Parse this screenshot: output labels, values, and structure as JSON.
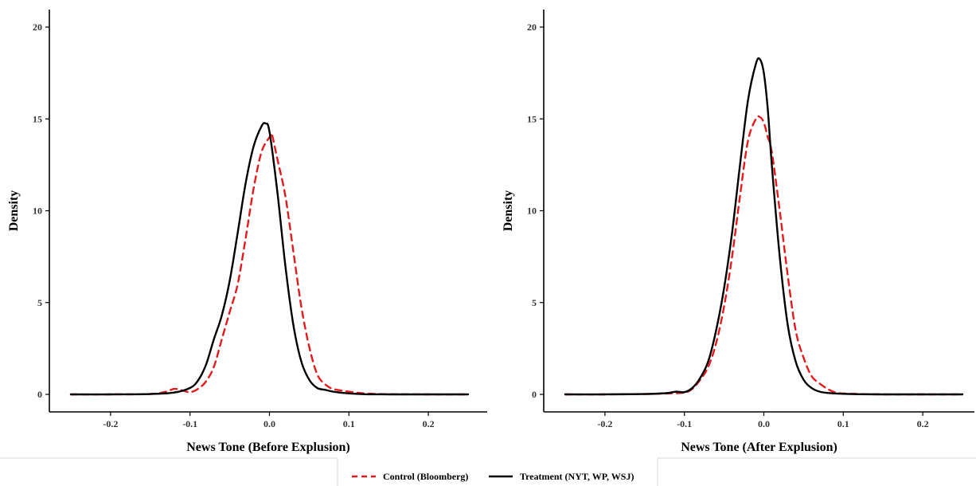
{
  "colors": {
    "control": "#e41a1c",
    "treatment": "#000000"
  },
  "legend": {
    "items": [
      {
        "label": "Control (Bloomberg)",
        "color": "#e41a1c",
        "dash": "dashed"
      },
      {
        "label": "Treatment (NYT, WP, WSJ)",
        "color": "#000000",
        "dash": "solid"
      }
    ]
  },
  "chart_data": [
    {
      "type": "line",
      "title": "",
      "xlabel": "News Tone (Before Explusion)",
      "ylabel": "Density",
      "xlim": [
        -0.25,
        0.25
      ],
      "ylim": [
        0,
        20
      ],
      "xticks": [
        -0.2,
        -0.1,
        0.0,
        0.1,
        0.2
      ],
      "xtick_labels": [
        "-0.2",
        "-0.1",
        "0.0",
        "0.1",
        "0.2"
      ],
      "yticks": [
        0,
        5,
        10,
        15,
        20
      ],
      "ytick_labels": [
        "0",
        "5",
        "10",
        "15",
        "20"
      ],
      "grid": false,
      "series": [
        {
          "name": "Control (Bloomberg)",
          "x": [
            -0.25,
            -0.2,
            -0.15,
            -0.13,
            -0.12,
            -0.11,
            -0.1,
            -0.09,
            -0.08,
            -0.07,
            -0.06,
            -0.05,
            -0.04,
            -0.03,
            -0.02,
            -0.01,
            0.0,
            0.003,
            0.01,
            0.02,
            0.03,
            0.04,
            0.05,
            0.06,
            0.07,
            0.08,
            0.1,
            0.12,
            0.15,
            0.2,
            0.25
          ],
          "y": [
            0,
            0,
            0.02,
            0.15,
            0.3,
            0.22,
            0.12,
            0.3,
            0.7,
            1.5,
            3.0,
            4.5,
            6.0,
            8.5,
            11.2,
            13.2,
            14.0,
            14.15,
            12.8,
            10.8,
            7.8,
            4.8,
            2.6,
            1.1,
            0.55,
            0.3,
            0.15,
            0.05,
            0.01,
            0,
            0
          ]
        },
        {
          "name": "Treatment (NYT, WP, WSJ)",
          "x": [
            -0.25,
            -0.2,
            -0.15,
            -0.12,
            -0.1,
            -0.09,
            -0.08,
            -0.07,
            -0.06,
            -0.05,
            -0.04,
            -0.03,
            -0.02,
            -0.01,
            -0.005,
            0.0,
            0.01,
            0.02,
            0.03,
            0.04,
            0.05,
            0.06,
            0.07,
            0.08,
            0.1,
            0.12,
            0.15,
            0.2,
            0.25
          ],
          "y": [
            0,
            0,
            0.02,
            0.1,
            0.35,
            0.75,
            1.6,
            3.0,
            4.3,
            6.2,
            8.8,
            11.5,
            13.5,
            14.6,
            14.75,
            14.3,
            11.0,
            7.0,
            3.8,
            1.8,
            0.8,
            0.35,
            0.25,
            0.15,
            0.05,
            0.01,
            0,
            0,
            0
          ]
        }
      ]
    },
    {
      "type": "line",
      "title": "",
      "xlabel": "News Tone (After Explusion)",
      "ylabel": "Density",
      "xlim": [
        -0.25,
        0.25
      ],
      "ylim": [
        0,
        20
      ],
      "xticks": [
        -0.2,
        -0.1,
        0.0,
        0.1,
        0.2
      ],
      "xtick_labels": [
        "-0.2",
        "-0.1",
        "0.0",
        "0.1",
        "0.2"
      ],
      "yticks": [
        0,
        5,
        10,
        15,
        20
      ],
      "ytick_labels": [
        "0",
        "5",
        "10",
        "15",
        "20"
      ],
      "grid": false,
      "series": [
        {
          "name": "Control (Bloomberg)",
          "x": [
            -0.25,
            -0.2,
            -0.15,
            -0.12,
            -0.1,
            -0.09,
            -0.08,
            -0.07,
            -0.06,
            -0.05,
            -0.04,
            -0.03,
            -0.02,
            -0.01,
            -0.005,
            0.0,
            0.005,
            0.01,
            0.02,
            0.03,
            0.04,
            0.05,
            0.06,
            0.07,
            0.08,
            0.09,
            0.1,
            0.12,
            0.15,
            0.2,
            0.25
          ],
          "y": [
            0,
            0,
            0.02,
            0.05,
            0.1,
            0.3,
            0.8,
            1.5,
            2.8,
            4.8,
            7.5,
            10.8,
            13.8,
            15.0,
            15.1,
            14.8,
            14.0,
            13.2,
            10.0,
            6.5,
            3.5,
            2.0,
            1.0,
            0.6,
            0.3,
            0.1,
            0.05,
            0.02,
            0,
            0,
            0
          ]
        },
        {
          "name": "Treatment (NYT, WP, WSJ)",
          "x": [
            -0.25,
            -0.2,
            -0.15,
            -0.13,
            -0.12,
            -0.11,
            -0.1,
            -0.09,
            -0.08,
            -0.07,
            -0.06,
            -0.05,
            -0.04,
            -0.03,
            -0.02,
            -0.01,
            -0.005,
            0.0,
            0.005,
            0.01,
            0.02,
            0.03,
            0.04,
            0.05,
            0.06,
            0.07,
            0.08,
            0.1,
            0.12,
            0.15,
            0.2,
            0.25
          ],
          "y": [
            0,
            0,
            0.02,
            0.05,
            0.08,
            0.15,
            0.12,
            0.35,
            0.9,
            1.8,
            3.5,
            5.8,
            8.8,
            12.5,
            16.0,
            18.0,
            18.25,
            17.5,
            15.5,
            12.5,
            7.5,
            3.8,
            1.8,
            0.8,
            0.35,
            0.15,
            0.08,
            0.03,
            0.01,
            0,
            0,
            0
          ]
        }
      ]
    }
  ]
}
